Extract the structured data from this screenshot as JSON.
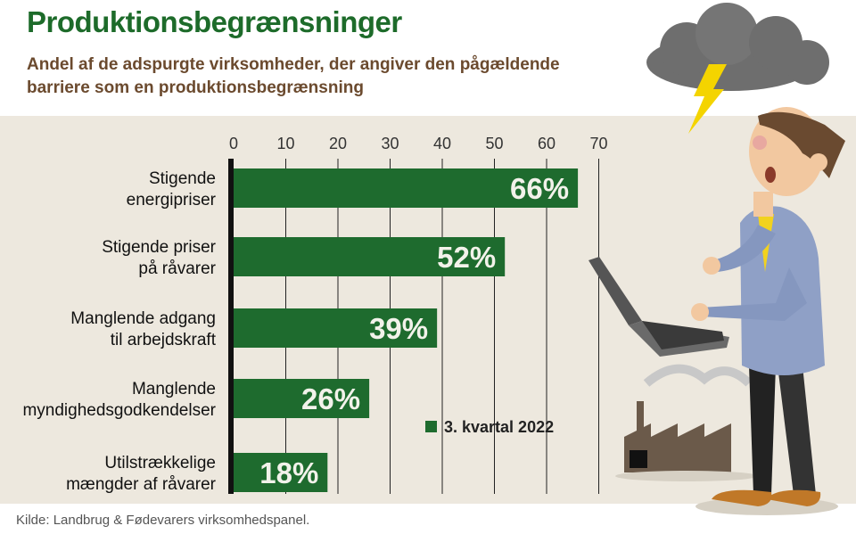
{
  "header": {
    "title": "Produktionsbegrænsninger",
    "subtitle": "Andel af de adspurgte virksomheder, der angiver den pågældende barriere som en produktionsbegrænsning"
  },
  "footer": {
    "source": "Kilde: Landbrug & Fødevarers virksomhedspanel."
  },
  "colors": {
    "bar": "#1e6b2e",
    "title": "#1d6b2a",
    "subtitle": "#6b4a2e",
    "panel": "#ede8de"
  },
  "illustration": {
    "icons": [
      "storm-cloud-icon",
      "lightning-icon",
      "businessman-icon",
      "laptop-icon",
      "factory-icon"
    ]
  },
  "chart_data": {
    "type": "bar",
    "orientation": "horizontal",
    "categories": [
      [
        "Stigende",
        "energipriser"
      ],
      [
        "Stigende priser",
        "på råvarer"
      ],
      [
        "Manglende adgang",
        "til arbejdskraft"
      ],
      [
        "Manglende",
        "myndighedsgodkendelser"
      ],
      [
        "Utilstrækkelige",
        "mængder af råvarer"
      ]
    ],
    "series": [
      {
        "name": "3. kvartal 2022",
        "values": [
          66,
          52,
          39,
          26,
          18
        ]
      }
    ],
    "data_labels": [
      "66%",
      "52%",
      "39%",
      "26%",
      "18%"
    ],
    "xlim": [
      0,
      70
    ],
    "xticks": [
      "0",
      "10",
      "20",
      "30",
      "40",
      "50",
      "60",
      "70"
    ],
    "grid": true,
    "legend": "bottom-right"
  }
}
